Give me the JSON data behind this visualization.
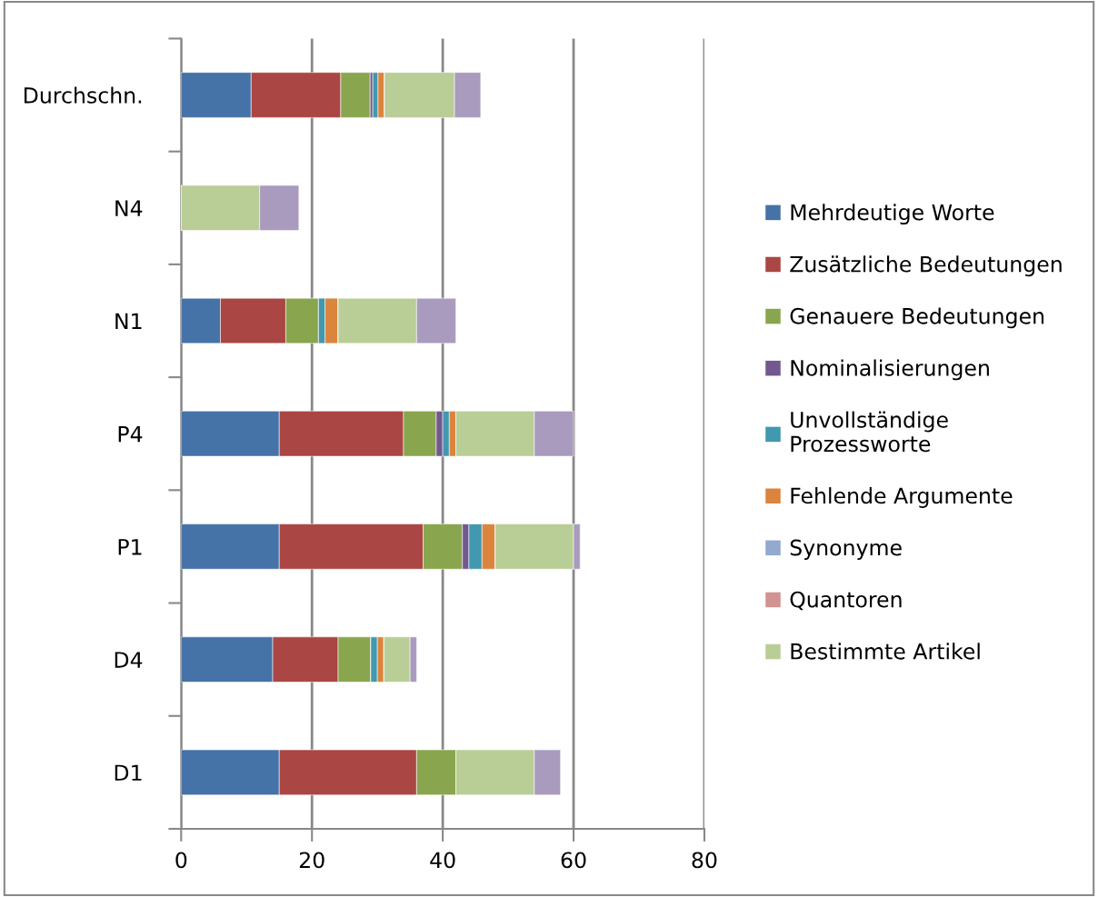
{
  "chart_data": {
    "type": "bar",
    "orientation": "horizontal",
    "stacked": true,
    "categories": [
      "Durchschn.",
      "N4",
      "N1",
      "P4",
      "P1",
      "D4",
      "D1"
    ],
    "series": [
      {
        "name": "Mehrdeutige Worte",
        "color": "#4572a7",
        "values": [
          10.7,
          0,
          6,
          15,
          15,
          14,
          15
        ]
      },
      {
        "name": "Zusätzliche Bedeutungen",
        "color": "#aa4643",
        "values": [
          13.7,
          0,
          10,
          19,
          22,
          10,
          21
        ]
      },
      {
        "name": "Genauere Bedeutungen",
        "color": "#89a54e",
        "values": [
          4.5,
          0,
          5,
          5,
          6,
          5,
          6
        ]
      },
      {
        "name": "Nominalisierungen",
        "color": "#71588f",
        "values": [
          0.4,
          0,
          0,
          1,
          1,
          0,
          0
        ]
      },
      {
        "name": "Unvollständige Prozessworte",
        "color": "#4198af",
        "values": [
          0.8,
          0,
          1,
          1,
          2,
          1,
          0
        ]
      },
      {
        "name": "Fehlende Argumente",
        "color": "#db843d",
        "values": [
          1,
          0,
          2,
          1,
          2,
          1,
          0
        ]
      },
      {
        "name": "Synonyme",
        "color": "#93a9cf",
        "values": [
          0,
          0,
          0,
          0,
          0,
          0,
          0
        ]
      },
      {
        "name": "Quantoren",
        "color": "#d19392",
        "values": [
          0,
          0,
          0,
          0,
          0,
          0,
          0
        ]
      },
      {
        "name": "Bestimmte Artikel",
        "color": "#b9cd96",
        "values": [
          10.7,
          12,
          12,
          12,
          12,
          4,
          12
        ]
      },
      {
        "color": "#a99bbd",
        "values": [
          4,
          6,
          6,
          6,
          1,
          1,
          4
        ]
      }
    ],
    "xlim": [
      0,
      80
    ],
    "xticks": [
      0,
      20,
      40,
      60,
      80
    ],
    "grid": "x",
    "legend": "right"
  }
}
